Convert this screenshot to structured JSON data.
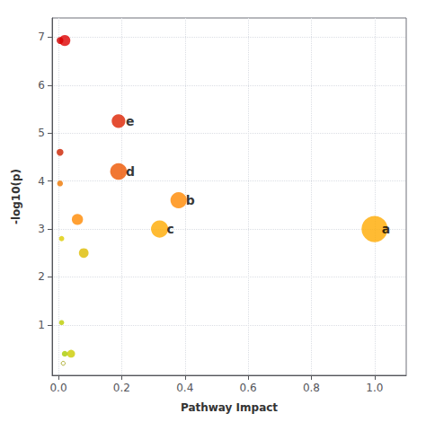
{
  "chart_data": {
    "type": "scatter",
    "xlabel": "Pathway Impact",
    "ylabel": "-log10(p)",
    "series": [
      {
        "marker": "circle",
        "x": [
          0.005,
          0.02,
          0.005,
          0.005,
          0.19,
          0.19,
          0.06,
          0.08,
          0.01,
          0.38,
          0.32,
          1.0,
          0.01,
          0.02,
          0.04
        ],
        "y": [
          6.93,
          6.93,
          4.6,
          3.95,
          5.25,
          4.2,
          3.2,
          2.5,
          2.8,
          3.6,
          3.0,
          3.0,
          1.05,
          0.4,
          0.4
        ],
        "sizes": [
          30,
          80,
          30,
          22,
          120,
          180,
          80,
          60,
          18,
          170,
          190,
          440,
          16,
          22,
          40
        ],
        "colors": [
          "#cc0000",
          "#dd0000",
          "#cc2200",
          "#ee7700",
          "#dd2200",
          "#ee5500",
          "#ff8800",
          "#ddbb00",
          "#ddcc00",
          "#ff8800",
          "#ffaa00",
          "#ffaa00",
          "#bbcc00",
          "#aacc00",
          "#cccc00"
        ]
      },
      {
        "marker": "open_circle",
        "x": [
          0.015
        ],
        "y": [
          0.2
        ],
        "sizes": [
          10
        ],
        "color": "#999900"
      }
    ],
    "annotations": [
      {
        "text": "e",
        "x": 0.19,
        "y": 5.25
      },
      {
        "text": "d",
        "x": 0.19,
        "y": 4.2
      },
      {
        "text": "b",
        "x": 0.38,
        "y": 3.6
      },
      {
        "text": "c",
        "x": 0.32,
        "y": 3.0
      },
      {
        "text": "a",
        "x": 1.0,
        "y": 3.0
      }
    ],
    "xlim": [
      -0.02,
      1.1
    ],
    "ylim": [
      -0.05,
      7.4
    ],
    "xticks": [
      {
        "value": 0.0,
        "label": "0.0"
      },
      0.2,
      0.4,
      0.6,
      0.8,
      {
        "value": 1.0,
        "label": "1.0"
      }
    ],
    "yticks": [
      1,
      2,
      3,
      4,
      5,
      6,
      7
    ],
    "grid": true
  }
}
